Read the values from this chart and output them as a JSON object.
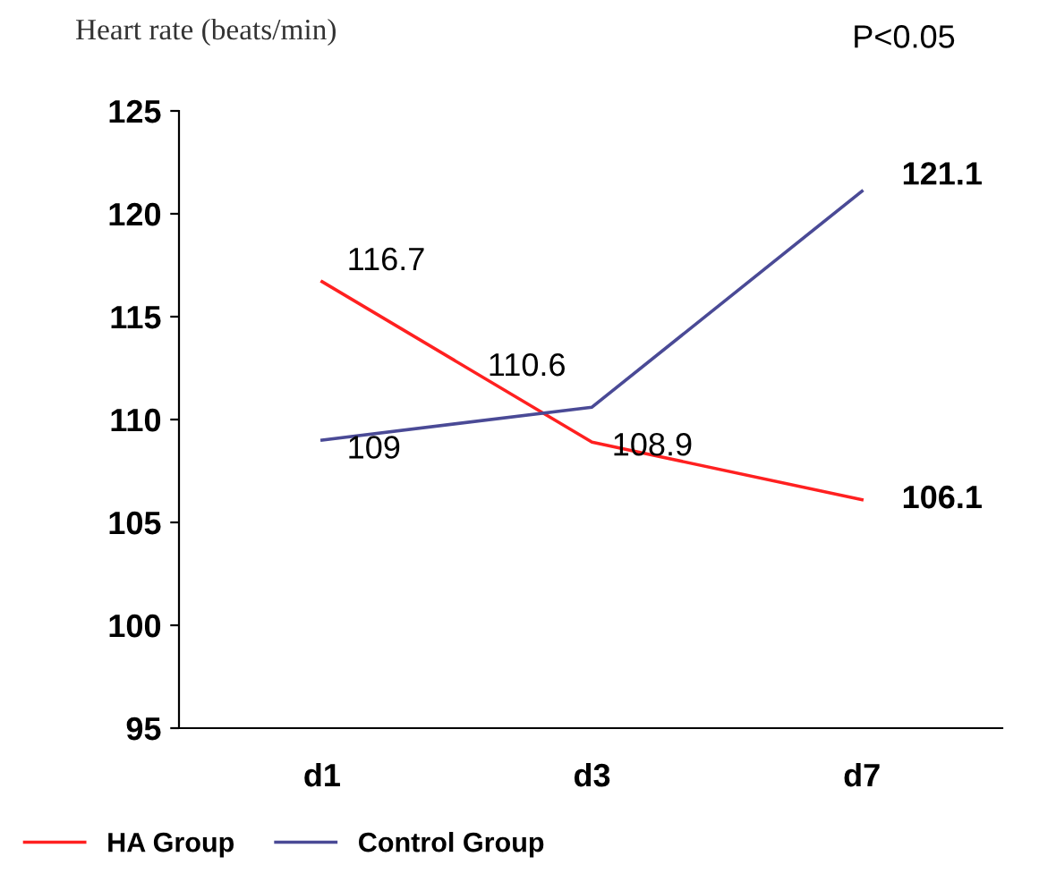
{
  "chart_data": {
    "type": "line",
    "ylabel": "Heart rate (beats/min)",
    "annotations": [
      "P<0.05"
    ],
    "categories": [
      "d1",
      "d3",
      "d7"
    ],
    "series": [
      {
        "name": "HA Group",
        "color": "#ff2020",
        "values": [
          116.7,
          108.9,
          106.1
        ]
      },
      {
        "name": "Control Group",
        "color": "#4a4a96",
        "values": [
          109,
          110.6,
          121.1
        ]
      }
    ],
    "ylim": [
      95,
      125
    ],
    "yticks": [
      95,
      100,
      105,
      110,
      115,
      120,
      125
    ],
    "data_labels": true,
    "legend": "bottom",
    "grid": false,
    "marker": "none",
    "line_style": "solid"
  }
}
